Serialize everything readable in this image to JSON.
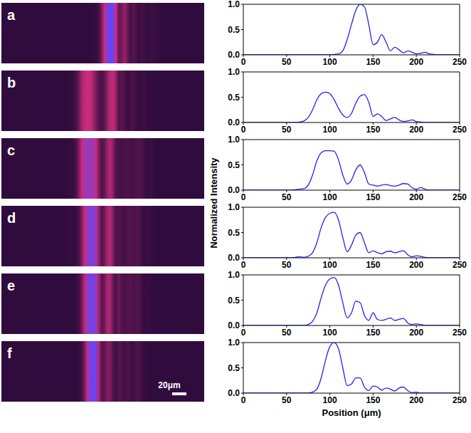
{
  "ylabel": "Normalized Intensity",
  "scale_bar": "20μm",
  "chart_data": [
    {
      "type": "line",
      "title": "a",
      "color": "#2222ee",
      "x": [
        0,
        5,
        10,
        15,
        20,
        25,
        30,
        35,
        40,
        45,
        50,
        55,
        60,
        65,
        70,
        75,
        80,
        85,
        90,
        95,
        100,
        105,
        110,
        115,
        120,
        125,
        130,
        135,
        140,
        145,
        150,
        155,
        160,
        165,
        170,
        175,
        180,
        185,
        190,
        195,
        200,
        205,
        210,
        215,
        220,
        225,
        230,
        235,
        240,
        245,
        250
      ],
      "values": [
        0,
        0,
        0,
        0,
        0,
        0,
        0,
        0,
        0,
        0,
        0,
        0,
        0,
        0,
        0,
        0,
        0,
        0,
        0,
        0,
        0,
        0.01,
        0.02,
        0.08,
        0.3,
        0.6,
        0.88,
        1.0,
        0.95,
        0.6,
        0.2,
        0.25,
        0.4,
        0.25,
        0.08,
        0.15,
        0.1,
        0.04,
        0.08,
        0.05,
        0.02,
        0.03,
        0.05,
        0.02,
        0.01,
        0,
        0,
        0,
        0,
        0,
        0
      ],
      "xlim": [
        0,
        250
      ],
      "xticks": [
        0,
        50,
        100,
        150,
        200,
        250
      ],
      "ylim": [
        0,
        1
      ],
      "yticks": [
        {
          "value": 0,
          "label": "0.0"
        },
        {
          "value": 0.5,
          "label": "0.5"
        },
        {
          "value": 1,
          "label": "1.0"
        }
      ]
    },
    {
      "type": "line",
      "title": "b",
      "color": "#2222ee",
      "x": [
        0,
        5,
        10,
        15,
        20,
        25,
        30,
        35,
        40,
        45,
        50,
        55,
        60,
        65,
        70,
        75,
        80,
        85,
        90,
        95,
        100,
        105,
        110,
        115,
        120,
        125,
        130,
        135,
        140,
        145,
        150,
        155,
        160,
        165,
        170,
        175,
        180,
        185,
        190,
        195,
        200,
        205,
        210,
        215,
        220,
        225,
        230,
        235,
        240,
        245,
        250
      ],
      "values": [
        0,
        0,
        0,
        0,
        0,
        0,
        0,
        0,
        0,
        0,
        0,
        0,
        0,
        0.01,
        0.03,
        0.1,
        0.25,
        0.45,
        0.57,
        0.6,
        0.57,
        0.45,
        0.28,
        0.15,
        0.1,
        0.18,
        0.38,
        0.52,
        0.55,
        0.4,
        0.12,
        0.17,
        0.12,
        0.04,
        0.07,
        0.1,
        0.05,
        0.02,
        0.03,
        0.05,
        0.02,
        0.01,
        0,
        0,
        0,
        0,
        0,
        0,
        0,
        0,
        0
      ],
      "xlim": [
        0,
        250
      ],
      "xticks": [
        0,
        50,
        100,
        150,
        200,
        250
      ],
      "ylim": [
        0,
        1
      ],
      "yticks": [
        {
          "value": 0,
          "label": "0.0"
        },
        {
          "value": 0.5,
          "label": "0.5"
        },
        {
          "value": 1,
          "label": "1.0"
        }
      ]
    },
    {
      "type": "line",
      "title": "c",
      "color": "#2222ee",
      "x": [
        0,
        5,
        10,
        15,
        20,
        25,
        30,
        35,
        40,
        45,
        50,
        55,
        60,
        65,
        70,
        75,
        80,
        85,
        90,
        95,
        100,
        105,
        110,
        115,
        120,
        125,
        130,
        135,
        140,
        145,
        150,
        155,
        160,
        165,
        170,
        175,
        180,
        185,
        190,
        195,
        200,
        205,
        210,
        215,
        220,
        225,
        230,
        235,
        240,
        245,
        250
      ],
      "values": [
        0,
        0,
        0,
        0,
        0,
        0,
        0,
        0,
        0,
        0,
        0,
        0,
        0.01,
        0.02,
        0.03,
        0.1,
        0.3,
        0.58,
        0.74,
        0.78,
        0.78,
        0.77,
        0.6,
        0.3,
        0.12,
        0.2,
        0.4,
        0.5,
        0.35,
        0.12,
        0.1,
        0.08,
        0.1,
        0.11,
        0.09,
        0.08,
        0.1,
        0.13,
        0.12,
        0.05,
        0.02,
        0.05,
        0.02,
        0,
        0,
        0,
        0,
        0,
        0,
        0,
        0
      ],
      "xlim": [
        0,
        250
      ],
      "xticks": [
        0,
        50,
        100,
        150,
        200,
        250
      ],
      "ylim": [
        0,
        1
      ],
      "yticks": [
        {
          "value": 0,
          "label": "0.0"
        },
        {
          "value": 0.5,
          "label": "0.5"
        },
        {
          "value": 1,
          "label": "1.0"
        }
      ]
    },
    {
      "type": "line",
      "title": "d",
      "color": "#2222ee",
      "x": [
        0,
        5,
        10,
        15,
        20,
        25,
        30,
        35,
        40,
        45,
        50,
        55,
        60,
        65,
        70,
        75,
        80,
        85,
        90,
        95,
        100,
        105,
        110,
        115,
        120,
        125,
        130,
        135,
        140,
        145,
        150,
        155,
        160,
        165,
        170,
        175,
        180,
        185,
        190,
        195,
        200,
        205,
        210,
        215,
        220,
        225,
        230,
        235,
        240,
        245,
        250
      ],
      "values": [
        0,
        0,
        0,
        0,
        0,
        0,
        0,
        0,
        0,
        0,
        0,
        0,
        0.01,
        0.02,
        0.01,
        0.03,
        0.1,
        0.3,
        0.6,
        0.8,
        0.88,
        0.9,
        0.75,
        0.4,
        0.12,
        0.25,
        0.45,
        0.5,
        0.3,
        0.1,
        0.14,
        0.1,
        0.08,
        0.12,
        0.13,
        0.1,
        0.12,
        0.14,
        0.06,
        0.02,
        0.04,
        0.03,
        0.01,
        0,
        0,
        0,
        0,
        0,
        0,
        0,
        0
      ],
      "xlim": [
        0,
        250
      ],
      "xticks": [
        0,
        50,
        100,
        150,
        200,
        250
      ],
      "ylim": [
        0,
        1
      ],
      "yticks": [
        {
          "value": 0,
          "label": "0.0"
        },
        {
          "value": 0.5,
          "label": "0.5"
        },
        {
          "value": 1,
          "label": "1.0"
        }
      ]
    },
    {
      "type": "line",
      "title": "e",
      "color": "#2222ee",
      "x": [
        0,
        5,
        10,
        15,
        20,
        25,
        30,
        35,
        40,
        45,
        50,
        55,
        60,
        65,
        70,
        75,
        80,
        85,
        90,
        95,
        100,
        105,
        110,
        115,
        120,
        125,
        130,
        135,
        140,
        145,
        150,
        155,
        160,
        165,
        170,
        175,
        180,
        185,
        190,
        195,
        200,
        205,
        210,
        215,
        220,
        225,
        230,
        235,
        240,
        245,
        250
      ],
      "values": [
        0,
        0,
        0,
        0,
        0,
        0,
        0,
        0,
        0,
        0,
        0,
        0,
        0,
        0,
        0,
        0.02,
        0.08,
        0.25,
        0.55,
        0.8,
        0.92,
        0.95,
        0.8,
        0.45,
        0.15,
        0.25,
        0.48,
        0.45,
        0.2,
        0.1,
        0.25,
        0.12,
        0.1,
        0.12,
        0.15,
        0.1,
        0.12,
        0.14,
        0.05,
        0.02,
        0.03,
        0.02,
        0,
        0,
        0,
        0,
        0,
        0,
        0,
        0,
        0
      ],
      "xlim": [
        0,
        250
      ],
      "xticks": [
        0,
        50,
        100,
        150,
        200,
        250
      ],
      "ylim": [
        0,
        1
      ],
      "yticks": [
        {
          "value": 0,
          "label": "0.0"
        },
        {
          "value": 0.5,
          "label": "0.5"
        },
        {
          "value": 1,
          "label": "1.0"
        }
      ]
    },
    {
      "type": "line",
      "title": "f",
      "color": "#2222ee",
      "xlabel": "Position (μm)",
      "x": [
        0,
        5,
        10,
        15,
        20,
        25,
        30,
        35,
        40,
        45,
        50,
        55,
        60,
        65,
        70,
        75,
        80,
        85,
        90,
        95,
        100,
        105,
        110,
        115,
        120,
        125,
        130,
        135,
        140,
        145,
        150,
        155,
        160,
        165,
        170,
        175,
        180,
        185,
        190,
        195,
        200,
        205,
        210,
        215,
        220,
        225,
        230,
        235,
        240,
        245,
        250
      ],
      "values": [
        0,
        0,
        0,
        0,
        0,
        0,
        0,
        0,
        0,
        0,
        0,
        0,
        0,
        0,
        0,
        0,
        0.02,
        0.08,
        0.3,
        0.65,
        0.92,
        1.0,
        0.88,
        0.5,
        0.15,
        0.18,
        0.3,
        0.3,
        0.12,
        0.05,
        0.14,
        0.12,
        0.06,
        0.1,
        0.08,
        0.04,
        0.1,
        0.12,
        0.05,
        0.01,
        0.02,
        0,
        0,
        0,
        0,
        0,
        0,
        0,
        0,
        0,
        0
      ],
      "xlim": [
        0,
        250
      ],
      "xticks": [
        0,
        50,
        100,
        150,
        200,
        250
      ],
      "ylim": [
        0,
        1
      ],
      "yticks": [
        {
          "value": 0,
          "label": "0.0"
        },
        {
          "value": 0.5,
          "label": "0.5"
        },
        {
          "value": 1,
          "label": "1.0"
        }
      ]
    }
  ]
}
